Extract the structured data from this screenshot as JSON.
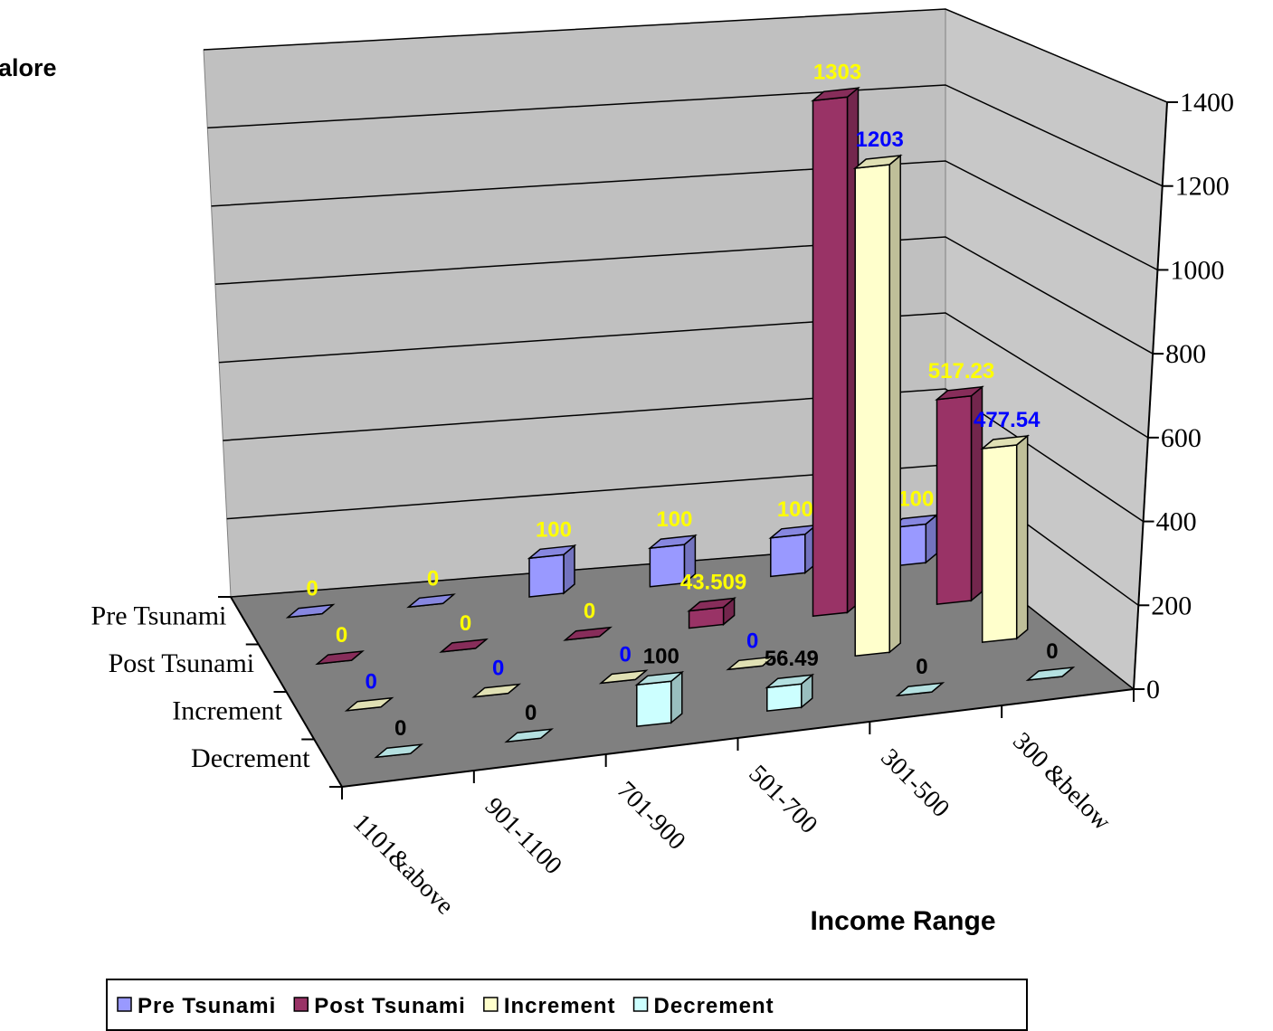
{
  "chart_data": {
    "type": "bar3d",
    "title": "alore",
    "x_label": "Income Range",
    "categories": [
      "1101&above",
      "901-1100",
      "701-900",
      "501-700",
      "301-500",
      "300 &below"
    ],
    "series": [
      {
        "name": "Pre Tsunami",
        "color": "#9999ff",
        "label_color": "#ffff00",
        "values": [
          0,
          0,
          100,
          100,
          100,
          100
        ]
      },
      {
        "name": "Post Tsunami",
        "color": "#993366",
        "label_color": "#ffff00",
        "values": [
          0,
          0,
          0,
          43.509,
          1303,
          517.23
        ]
      },
      {
        "name": "Increment",
        "color": "#ffffcc",
        "label_color": "#0000ff",
        "values": [
          0,
          0,
          0,
          0,
          1203,
          477.54
        ]
      },
      {
        "name": "Decrement",
        "color": "#ccffff",
        "label_color": "#000000",
        "values": [
          0,
          0,
          100,
          56.49,
          0,
          0
        ]
      }
    ],
    "ylim": [
      0,
      1400
    ],
    "yticks": [
      0,
      200,
      400,
      600,
      800,
      1000,
      1200,
      1400
    ],
    "grid": true
  }
}
